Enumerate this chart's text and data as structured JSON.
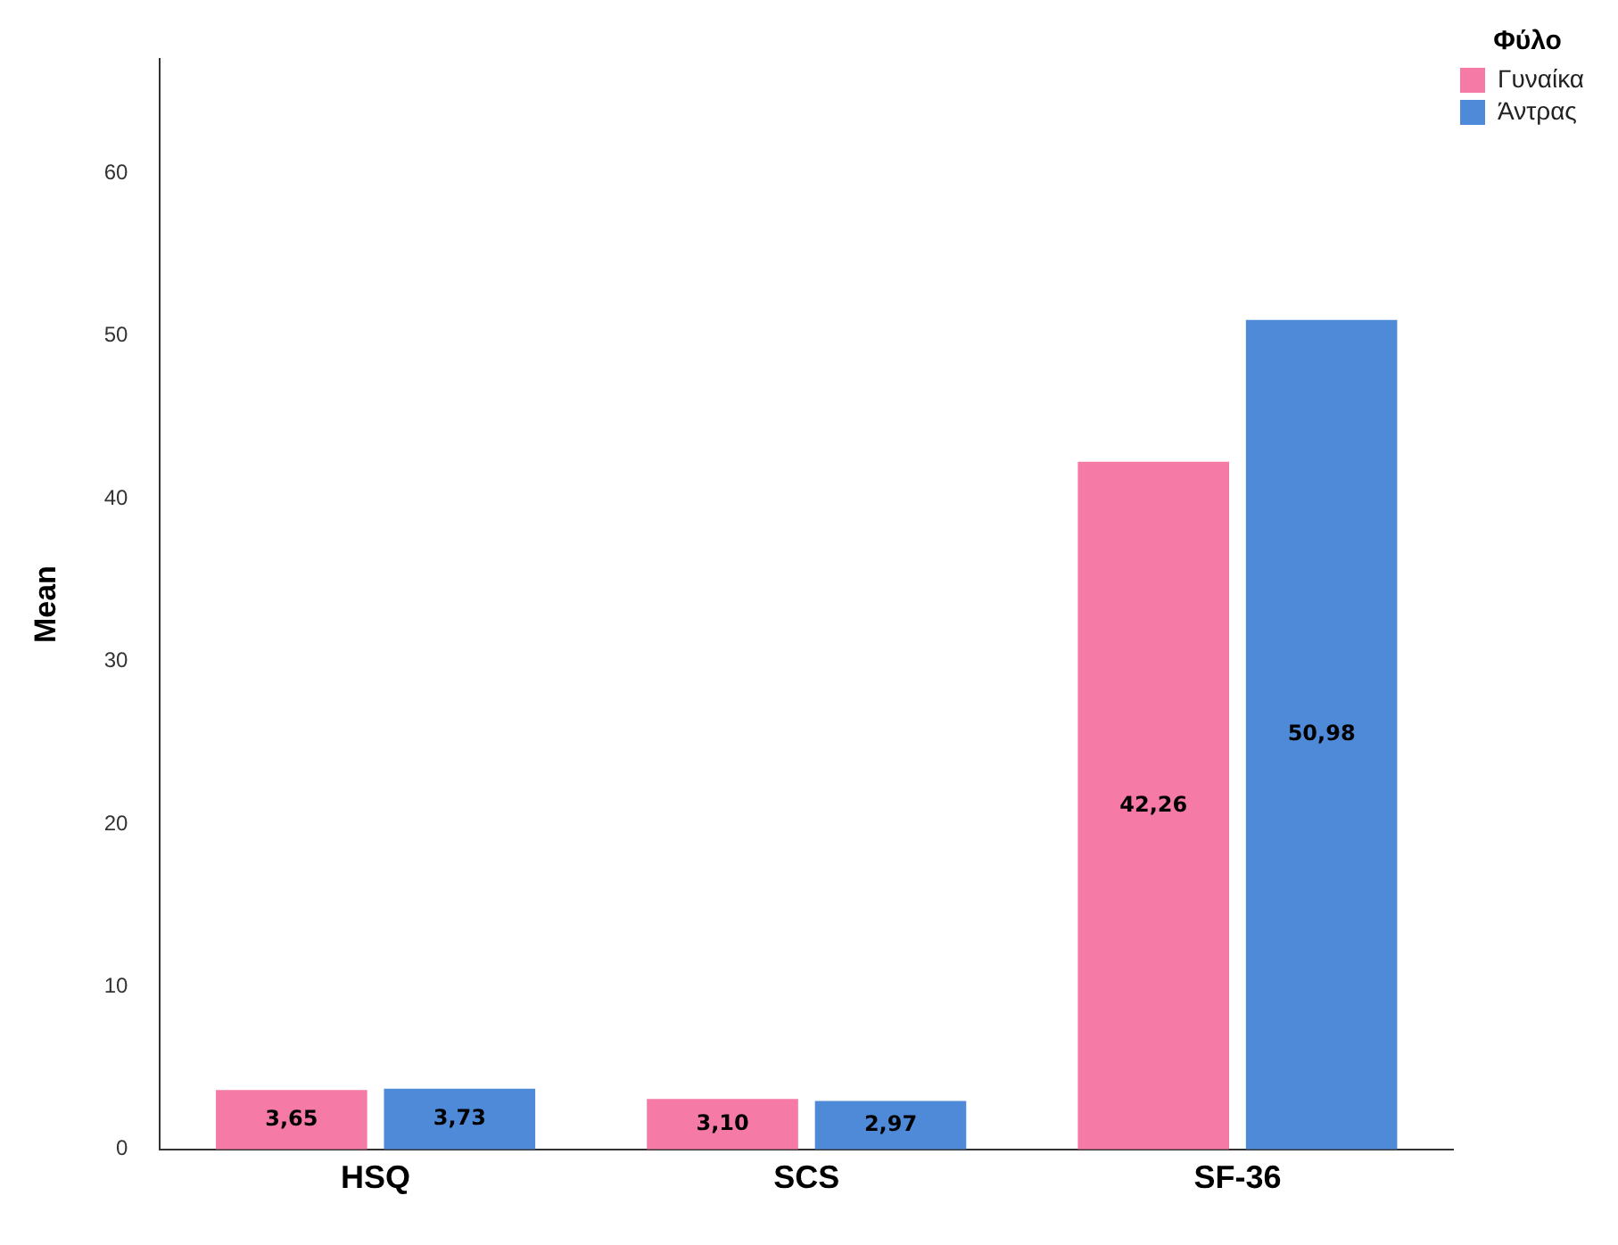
{
  "chart_data": {
    "type": "bar",
    "ylabel": "Mean",
    "legend_title": "Φύλο",
    "categories": [
      "HSQ",
      "SCS",
      "SF-36"
    ],
    "series": [
      {
        "name": "Γυναίκα",
        "color": "#f57aa6",
        "values": [
          3.65,
          3.1,
          42.26
        ],
        "value_labels": [
          "3,65",
          "3,10",
          "42,26"
        ]
      },
      {
        "name": "Άντρας",
        "color": "#4f8ad9",
        "values": [
          3.73,
          2.97,
          50.98
        ],
        "value_labels": [
          "3,73",
          "2,97",
          "50,98"
        ]
      }
    ],
    "ylim": [
      0,
      67
    ],
    "yticks": [
      0,
      10,
      20,
      30,
      40,
      50,
      60
    ],
    "grid": false,
    "legend": "top right"
  }
}
